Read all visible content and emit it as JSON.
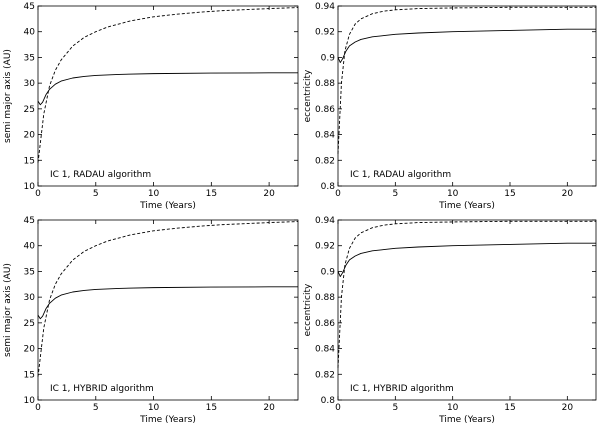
{
  "chart_data": [
    {
      "type": "line",
      "xlabel": "Time (Years)",
      "ylabel": "semi major axis (AU)",
      "annotation": "IC 1, RADAU algorithm",
      "xlim": [
        0,
        22.5
      ],
      "ylim": [
        10,
        45
      ],
      "xticks": [
        0,
        5,
        10,
        15,
        20
      ],
      "yticks": [
        10,
        15,
        20,
        25,
        30,
        35,
        40,
        45
      ],
      "xtick_labels": [
        "0",
        "5",
        "10",
        "15",
        "20"
      ],
      "ytick_labels": [
        "10",
        "15",
        "20",
        "25",
        "30",
        "35",
        "40",
        "45"
      ],
      "series": [
        {
          "name": "dashed",
          "style": "dashed",
          "x": [
            0,
            0.5,
            1,
            1.5,
            2,
            3,
            4,
            5,
            6,
            8,
            10,
            12,
            14,
            16,
            18,
            20,
            22.5
          ],
          "values": [
            14.5,
            24,
            29.5,
            32.5,
            34.5,
            37.2,
            38.9,
            40.0,
            40.9,
            42.1,
            42.9,
            43.4,
            43.8,
            44.1,
            44.3,
            44.5,
            44.7
          ]
        },
        {
          "name": "solid",
          "style": "solid",
          "x": [
            0,
            0.2,
            0.4,
            0.7,
            1,
            1.5,
            2,
            3,
            4,
            5,
            7,
            10,
            15,
            20,
            22.5
          ],
          "values": [
            26.5,
            25.8,
            26.3,
            27.8,
            28.8,
            29.8,
            30.4,
            31.0,
            31.3,
            31.5,
            31.7,
            31.85,
            31.95,
            32.0,
            32.0
          ]
        }
      ]
    },
    {
      "type": "line",
      "xlabel": "Time (Years)",
      "ylabel": "eccentricity",
      "annotation": "IC 1, RADAU algorithm",
      "xlim": [
        0,
        22.5
      ],
      "ylim": [
        0.8,
        0.94
      ],
      "xticks": [
        0,
        5,
        10,
        15,
        20
      ],
      "yticks": [
        0.8,
        0.82,
        0.84,
        0.86,
        0.88,
        0.9,
        0.92,
        0.94
      ],
      "xtick_labels": [
        "0",
        "5",
        "10",
        "15",
        "20"
      ],
      "ytick_labels": [
        "0.8",
        "0.82",
        "0.84",
        "0.86",
        "0.88",
        "0.9",
        "0.92",
        "0.94"
      ],
      "series": [
        {
          "name": "dashed",
          "style": "dashed",
          "x": [
            0,
            0.3,
            0.6,
            1,
            1.5,
            2,
            3,
            4,
            5,
            7,
            10,
            15,
            20,
            22.5
          ],
          "values": [
            0.825,
            0.88,
            0.905,
            0.918,
            0.926,
            0.93,
            0.934,
            0.936,
            0.937,
            0.938,
            0.9385,
            0.939,
            0.939,
            0.939
          ]
        },
        {
          "name": "solid",
          "style": "solid",
          "x": [
            0,
            0.2,
            0.4,
            0.7,
            1,
            1.5,
            2,
            3,
            4,
            5,
            7,
            10,
            15,
            20,
            22.5
          ],
          "values": [
            0.9,
            0.896,
            0.899,
            0.905,
            0.909,
            0.912,
            0.914,
            0.916,
            0.917,
            0.918,
            0.919,
            0.92,
            0.921,
            0.922,
            0.922
          ]
        }
      ]
    },
    {
      "type": "line",
      "xlabel": "Time (Years)",
      "ylabel": "semi major axis (AU)",
      "annotation": "IC 1, HYBRID algorithm",
      "xlim": [
        0,
        22.5
      ],
      "ylim": [
        10,
        45
      ],
      "xticks": [
        0,
        5,
        10,
        15,
        20
      ],
      "yticks": [
        10,
        15,
        20,
        25,
        30,
        35,
        40,
        45
      ],
      "xtick_labels": [
        "0",
        "5",
        "10",
        "15",
        "20"
      ],
      "ytick_labels": [
        "10",
        "15",
        "20",
        "25",
        "30",
        "35",
        "40",
        "45"
      ],
      "series": [
        {
          "name": "dashed",
          "style": "dashed",
          "x": [
            0,
            0.5,
            1,
            1.5,
            2,
            3,
            4,
            5,
            6,
            8,
            10,
            12,
            14,
            16,
            18,
            20,
            22.5
          ],
          "values": [
            14.5,
            24,
            29.5,
            32.5,
            34.5,
            37.2,
            38.9,
            40.0,
            40.9,
            42.1,
            42.9,
            43.4,
            43.8,
            44.1,
            44.3,
            44.5,
            44.7
          ]
        },
        {
          "name": "solid",
          "style": "solid",
          "x": [
            0,
            0.2,
            0.4,
            0.7,
            1,
            1.5,
            2,
            3,
            4,
            5,
            7,
            10,
            15,
            20,
            22.5
          ],
          "values": [
            26.5,
            25.8,
            26.3,
            27.8,
            28.8,
            29.8,
            30.4,
            31.0,
            31.3,
            31.5,
            31.7,
            31.85,
            31.95,
            32.0,
            32.0
          ]
        }
      ]
    },
    {
      "type": "line",
      "xlabel": "Time (Years)",
      "ylabel": "eccentricity",
      "annotation": "IC 1, HYBRID algorithm",
      "xlim": [
        0,
        22.5
      ],
      "ylim": [
        0.8,
        0.94
      ],
      "xticks": [
        0,
        5,
        10,
        15,
        20
      ],
      "yticks": [
        0.8,
        0.82,
        0.84,
        0.86,
        0.88,
        0.9,
        0.92,
        0.94
      ],
      "xtick_labels": [
        "0",
        "5",
        "10",
        "15",
        "20"
      ],
      "ytick_labels": [
        "0.8",
        "0.82",
        "0.84",
        "0.86",
        "0.88",
        "0.9",
        "0.92",
        "0.94"
      ],
      "series": [
        {
          "name": "dashed",
          "style": "dashed",
          "x": [
            0,
            0.3,
            0.6,
            1,
            1.5,
            2,
            3,
            4,
            5,
            7,
            10,
            15,
            20,
            22.5
          ],
          "values": [
            0.825,
            0.88,
            0.905,
            0.918,
            0.926,
            0.93,
            0.934,
            0.936,
            0.937,
            0.938,
            0.9385,
            0.939,
            0.939,
            0.939
          ]
        },
        {
          "name": "solid",
          "style": "solid",
          "x": [
            0,
            0.2,
            0.4,
            0.7,
            1,
            1.5,
            2,
            3,
            4,
            5,
            7,
            10,
            15,
            20,
            22.5
          ],
          "values": [
            0.9,
            0.896,
            0.899,
            0.905,
            0.909,
            0.912,
            0.914,
            0.916,
            0.917,
            0.918,
            0.919,
            0.92,
            0.921,
            0.922,
            0.922
          ]
        }
      ]
    }
  ]
}
